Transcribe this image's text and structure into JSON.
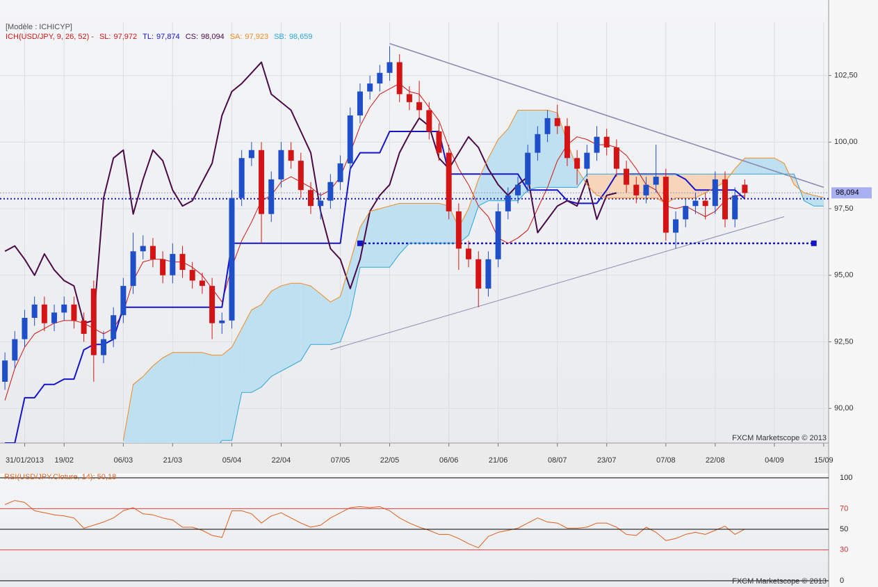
{
  "chart_data": [
    {
      "type": "candlestick",
      "header": "[Modèle : ICHICYP]",
      "title": "ICH(USD/JPY, 9, 26, 52) -",
      "watermark": "FXCM Marketscope © 2013",
      "categories": [
        null,
        null,
        "31/01/2013",
        null,
        null,
        null,
        "19/02",
        null,
        null,
        null,
        null,
        null,
        "06/03",
        null,
        null,
        null,
        null,
        "21/03",
        null,
        null,
        null,
        null,
        null,
        "05/04",
        null,
        null,
        null,
        null,
        "22/04",
        null,
        null,
        null,
        null,
        null,
        "07/05",
        null,
        null,
        null,
        null,
        "22/05",
        null,
        null,
        null,
        null,
        null,
        "06/06",
        null,
        null,
        null,
        null,
        "21/06",
        null,
        null,
        null,
        null,
        null,
        "08/07",
        null,
        null,
        null,
        null,
        "23/07",
        null,
        null,
        null,
        null,
        null,
        "07/08",
        null,
        null,
        null,
        null,
        "22/08",
        null,
        null,
        null,
        null,
        null,
        "04/09",
        null,
        null,
        null,
        null,
        "15/09"
      ],
      "open": [
        91.0,
        91.8,
        92.6,
        93.4,
        93.9,
        93.2,
        93.6,
        93.9,
        93.3,
        94.5,
        92.0,
        92.6,
        93.5,
        94.6,
        95.9,
        96.1,
        95.6,
        95.0,
        95.8,
        95.2,
        94.8,
        94.6,
        93.2,
        93.3,
        97.9,
        99.4,
        99.7,
        97.3,
        98.6,
        99.7,
        99.3,
        98.2,
        97.6,
        97.8,
        98.5,
        99.2,
        101.0,
        101.9,
        102.2,
        102.6,
        103.0,
        101.8,
        101.5,
        101.2,
        100.4,
        99.6,
        97.4,
        96.0,
        95.6,
        94.5,
        95.6,
        97.4,
        98.0,
        98.4,
        99.6,
        100.3,
        100.9,
        100.6,
        99.4,
        99.0,
        99.6,
        100.2,
        99.8,
        99.0,
        98.4,
        98.0,
        98.4,
        98.7,
        96.6,
        97.1,
        97.6,
        97.8,
        97.6,
        98.6,
        97.1,
        98.4,
        null,
        null,
        null,
        null,
        null,
        null,
        null,
        null
      ],
      "high": [
        92.1,
        92.9,
        93.7,
        94.2,
        94.2,
        93.9,
        94.2,
        94.2,
        93.6,
        94.8,
        92.9,
        93.8,
        94.9,
        96.6,
        96.5,
        96.4,
        95.9,
        96.2,
        96.1,
        95.5,
        95.1,
        94.9,
        93.6,
        98.2,
        99.7,
        100.0,
        100.0,
        98.9,
        100.0,
        100.0,
        99.6,
        98.5,
        98.1,
        98.8,
        99.5,
        101.3,
        102.2,
        102.5,
        102.9,
        103.6,
        103.3,
        102.1,
        102.3,
        101.5,
        100.7,
        99.9,
        97.7,
        96.3,
        95.9,
        95.9,
        97.7,
        98.3,
        98.7,
        99.9,
        100.6,
        101.2,
        101.4,
        100.9,
        99.7,
        99.9,
        100.6,
        100.5,
        100.1,
        99.3,
        98.7,
        98.7,
        99.9,
        99.0,
        97.4,
        97.9,
        98.1,
        98.1,
        98.9,
        98.9,
        98.3,
        98.6,
        null,
        null,
        null,
        null,
        null,
        null,
        null,
        null
      ],
      "low": [
        90.7,
        91.5,
        92.3,
        93.1,
        92.9,
        92.9,
        93.3,
        93.0,
        92.5,
        91.0,
        91.7,
        92.3,
        93.2,
        94.3,
        95.6,
        95.3,
        94.7,
        94.7,
        94.9,
        94.5,
        94.3,
        92.6,
        92.8,
        93.0,
        97.6,
        99.1,
        96.2,
        97.0,
        98.3,
        99.0,
        97.9,
        97.3,
        97.1,
        97.5,
        98.2,
        98.9,
        100.7,
        101.6,
        101.9,
        102.3,
        101.5,
        101.2,
        100.9,
        100.1,
        99.3,
        97.1,
        95.2,
        95.3,
        93.8,
        94.2,
        95.3,
        97.1,
        97.7,
        98.1,
        99.3,
        100.0,
        100.3,
        99.1,
        98.4,
        98.7,
        99.3,
        99.5,
        98.7,
        98.1,
        97.7,
        97.7,
        98.1,
        96.3,
        96.0,
        96.8,
        97.3,
        97.1,
        97.3,
        96.8,
        96.8,
        97.9,
        null,
        null,
        null,
        null,
        null,
        null,
        null,
        null
      ],
      "close": [
        91.8,
        92.6,
        93.4,
        93.9,
        93.2,
        93.6,
        93.9,
        93.3,
        92.8,
        92.0,
        92.6,
        93.5,
        94.6,
        95.9,
        96.1,
        95.6,
        95.0,
        95.8,
        95.2,
        94.8,
        94.6,
        93.2,
        93.3,
        97.9,
        99.4,
        99.7,
        97.3,
        98.6,
        99.7,
        99.3,
        98.2,
        97.6,
        97.8,
        98.5,
        99.2,
        101.0,
        101.9,
        102.2,
        102.6,
        103.0,
        101.8,
        101.5,
        101.2,
        100.4,
        99.6,
        97.4,
        96.0,
        95.6,
        94.5,
        95.6,
        97.4,
        98.0,
        98.4,
        99.6,
        100.3,
        100.9,
        100.6,
        99.4,
        99.0,
        99.6,
        100.2,
        99.8,
        99.0,
        98.4,
        98.0,
        98.4,
        98.7,
        96.6,
        97.1,
        97.6,
        97.8,
        97.6,
        98.6,
        97.1,
        98.0,
        98.09,
        null,
        null,
        null,
        null,
        null,
        null,
        null,
        null
      ],
      "up_color": "#1f4fc8",
      "down_color": "#d41414",
      "series": [
        {
          "name": "SL:",
          "current": 97.972,
          "current_label": "97,972",
          "color": "#d41414",
          "values": [
            90.3,
            91.5,
            92.3,
            92.8,
            93.0,
            93.2,
            93.3,
            93.3,
            93.2,
            93.0,
            92.8,
            93.0,
            93.6,
            94.8,
            95.5,
            95.6,
            95.6,
            95.5,
            95.5,
            95.3,
            95.0,
            94.5,
            94.0,
            95.3,
            96.3,
            97.0,
            97.8,
            98.0,
            98.5,
            98.7,
            98.5,
            98.3,
            98.0,
            98.2,
            98.7,
            99.6,
            100.6,
            101.3,
            101.8,
            102.0,
            102.2,
            101.9,
            101.8,
            101.3,
            100.8,
            99.8,
            99.0,
            98.4,
            97.6,
            97.2,
            96.4,
            96.2,
            96.4,
            96.7,
            97.5,
            98.3,
            99.3,
            99.9,
            100.2,
            100.1,
            99.9,
            99.9,
            99.8,
            99.5,
            99.0,
            98.4,
            98.2,
            97.6,
            97.5,
            97.6,
            97.4,
            97.2,
            97.4,
            97.8,
            98.0,
            97.97,
            null,
            null,
            null,
            null,
            null,
            null,
            null,
            null
          ]
        },
        {
          "name": "TL:",
          "current": 97.874,
          "current_label": "97,874",
          "color": "#1414c8",
          "values": [
            88.7,
            88.7,
            90.4,
            90.4,
            90.9,
            90.9,
            91.1,
            91.1,
            92.2,
            92.4,
            92.4,
            92.6,
            93.8,
            93.8,
            93.8,
            93.8,
            93.8,
            93.8,
            93.8,
            93.8,
            93.8,
            93.8,
            93.8,
            96.2,
            96.2,
            96.2,
            96.2,
            96.2,
            96.2,
            96.2,
            96.2,
            96.2,
            96.2,
            96.2,
            96.2,
            99.0,
            99.6,
            99.6,
            99.6,
            100.4,
            100.4,
            100.4,
            100.4,
            100.4,
            100.4,
            98.8,
            98.8,
            98.8,
            98.8,
            98.8,
            98.8,
            98.8,
            98.8,
            98.2,
            98.2,
            98.2,
            98.2,
            97.8,
            97.7,
            97.7,
            97.7,
            98.2,
            98.8,
            98.8,
            98.8,
            98.8,
            98.8,
            98.8,
            98.8,
            98.6,
            98.2,
            98.2,
            98.2,
            98.2,
            98.2,
            97.87,
            null,
            null,
            null,
            null,
            null,
            null,
            null,
            null
          ]
        },
        {
          "name": "CS:",
          "current": 98.094,
          "current_label": "98,094",
          "color": "#4a0a48",
          "values": [
            95.9,
            96.1,
            95.6,
            95.0,
            95.8,
            95.2,
            94.8,
            94.6,
            93.2,
            93.3,
            97.9,
            99.4,
            99.7,
            97.3,
            98.6,
            99.7,
            99.3,
            98.2,
            97.6,
            97.8,
            98.5,
            99.2,
            101.0,
            101.9,
            102.2,
            102.6,
            103.0,
            101.8,
            101.5,
            101.2,
            100.4,
            99.6,
            97.4,
            96.0,
            95.6,
            94.5,
            95.6,
            97.4,
            98.0,
            98.4,
            99.6,
            100.3,
            100.9,
            100.6,
            99.4,
            99.0,
            99.6,
            100.2,
            99.8,
            99.0,
            98.4,
            98.0,
            98.4,
            98.7,
            96.6,
            97.1,
            97.6,
            97.8,
            97.6,
            98.6,
            97.1,
            98.0,
            98.09,
            null,
            null,
            null,
            null,
            null,
            null,
            null,
            null,
            null,
            null,
            null,
            null,
            null,
            null,
            null,
            null,
            null,
            null,
            null,
            null,
            null
          ]
        },
        {
          "name": "SA:",
          "current": 97.923,
          "current_label": "97,923",
          "color": "#f08a24",
          "values": [
            null,
            null,
            null,
            null,
            null,
            null,
            null,
            null,
            null,
            null,
            null,
            null,
            88.8,
            90.9,
            91.2,
            91.6,
            91.9,
            92.1,
            92.1,
            92.1,
            92.1,
            92.0,
            92.0,
            92.3,
            93.0,
            93.7,
            93.9,
            94.4,
            94.6,
            94.7,
            94.7,
            94.6,
            94.3,
            94.0,
            94.2,
            95.5,
            96.8,
            97.4,
            97.5,
            97.6,
            97.7,
            97.7,
            97.7,
            97.7,
            97.7,
            97.6,
            96.8,
            97.5,
            98.6,
            99.4,
            100.1,
            100.5,
            101.2,
            101.2,
            101.2,
            101.2,
            101.1,
            100.0,
            99.0,
            98.4,
            98.0,
            97.9,
            97.9,
            97.9,
            97.9,
            97.9,
            97.9,
            97.7,
            97.9,
            97.9,
            97.9,
            98.1,
            98.3,
            98.5,
            99.0,
            99.4,
            99.4,
            99.4,
            99.4,
            99.2,
            98.4,
            98.1,
            98.0,
            97.92
          ]
        },
        {
          "name": "SB:",
          "current": 98.659,
          "current_label": "98,659",
          "color": "#2ea6d8",
          "values": [
            null,
            null,
            null,
            null,
            null,
            null,
            null,
            null,
            null,
            null,
            null,
            null,
            88.3,
            88.3,
            88.3,
            88.3,
            88.3,
            88.3,
            88.3,
            88.3,
            88.3,
            88.3,
            88.8,
            88.8,
            90.6,
            90.6,
            90.8,
            91.2,
            91.4,
            91.6,
            91.8,
            92.4,
            92.4,
            92.4,
            92.5,
            93.5,
            95.3,
            95.3,
            95.3,
            95.3,
            95.8,
            96.2,
            96.2,
            96.2,
            96.2,
            96.2,
            96.2,
            96.5,
            97.6,
            97.8,
            97.8,
            97.8,
            97.8,
            98.2,
            98.3,
            98.3,
            98.3,
            98.3,
            98.3,
            98.8,
            98.8,
            98.8,
            98.8,
            98.8,
            98.8,
            98.8,
            98.8,
            98.8,
            98.8,
            98.8,
            98.8,
            98.8,
            98.8,
            98.8,
            98.8,
            98.8,
            98.8,
            98.8,
            98.8,
            98.8,
            98.8,
            97.8,
            97.6,
            97.6
          ]
        }
      ],
      "cloud_colors": [
        "#bfe0f1",
        "#f6d5ba"
      ],
      "trendlines": [
        {
          "x": [
            39,
            83
          ],
          "y": [
            103.7,
            98.3
          ],
          "color": "#8a8ab4"
        },
        {
          "x": [
            33,
            79
          ],
          "y": [
            92.2,
            97.2
          ],
          "color": "#8a8ab4"
        }
      ],
      "support": {
        "x": [
          36,
          82
        ],
        "value": 96.2,
        "color": "#1414c8"
      },
      "ylim": [
        88.7,
        104.5
      ],
      "yticks": [
        {
          "value": 90,
          "label": "90,00"
        },
        {
          "value": 92.5,
          "label": "92,50"
        },
        {
          "value": 95,
          "label": "95,00"
        },
        {
          "value": 97.5,
          "label": "97,50"
        },
        {
          "value": 100,
          "label": "100,00"
        },
        {
          "value": 102.5,
          "label": "102,50"
        }
      ],
      "grid": true
    },
    {
      "type": "line",
      "title": "RSI(USD/JPY.Cloture, 14): 50,18",
      "watermark": "FXCM Marketscope © 2013",
      "color": "#e0601e",
      "values": [
        74,
        78,
        76,
        68,
        66,
        64,
        63,
        61,
        51,
        54,
        57,
        61,
        68,
        71,
        65,
        64,
        61,
        59,
        52,
        52,
        49,
        44,
        42,
        68,
        68,
        65,
        56,
        63,
        66,
        61,
        56,
        52,
        54,
        61,
        66,
        71,
        72,
        71,
        72,
        68,
        61,
        56,
        52,
        49,
        45,
        45,
        41,
        36,
        32,
        43,
        47,
        49,
        51,
        56,
        61,
        57,
        56,
        51,
        51,
        52,
        56,
        56,
        52,
        45,
        44,
        52,
        47,
        39,
        41,
        45,
        47,
        45,
        49,
        53,
        45,
        50.18
      ],
      "ylim": [
        0,
        100
      ],
      "yticks": [
        100,
        70,
        50,
        30,
        0
      ],
      "grid_colors": [
        "#000000",
        "#e04040",
        "#000000",
        "#e04040",
        "#000000"
      ]
    }
  ]
}
